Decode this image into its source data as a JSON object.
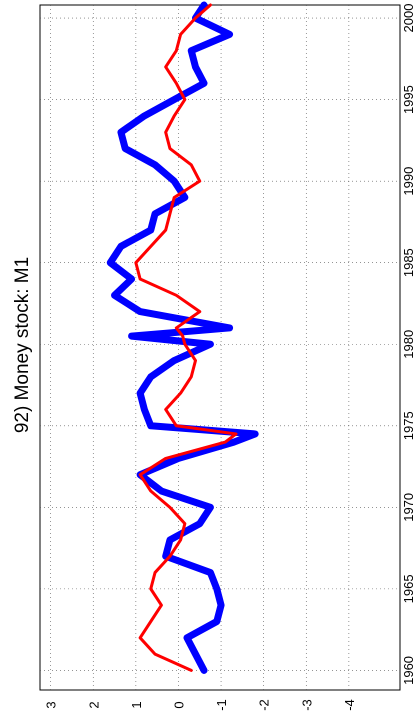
{
  "chart_data": {
    "type": "line",
    "title": "92) Money stock: M1",
    "x": [
      1960,
      1961,
      1962,
      1963,
      1964,
      1965,
      1966,
      1967,
      1968,
      1969,
      1970,
      1971,
      1972,
      1973,
      1974,
      1974.5,
      1975,
      1976,
      1977,
      1978,
      1979,
      1980,
      1980.5,
      1981,
      1982,
      1983,
      1984,
      1985,
      1986,
      1987,
      1988,
      1989,
      1990,
      1991,
      1992,
      1993,
      1994,
      1995,
      1996,
      1997,
      1998,
      1999,
      2000,
      2000.8
    ],
    "series": [
      {
        "color": "#0000ff",
        "values": [
          -0.6,
          -0.4,
          -0.2,
          -0.9,
          -1.0,
          -0.9,
          -0.75,
          0.3,
          0.2,
          -0.5,
          -0.75,
          0.4,
          0.9,
          0,
          -1.3,
          -1.8,
          0.65,
          0.8,
          0.9,
          0.65,
          0.1,
          -0.75,
          1.1,
          -1.2,
          0.9,
          1.5,
          1.1,
          1.6,
          1.35,
          0.65,
          0.55,
          -0.15,
          0.1,
          0.55,
          1.25,
          1.35,
          0.8,
          0.1,
          -0.6,
          -0.4,
          -0.3,
          -1.2,
          -0.4,
          -0.6
        ]
      },
      {
        "color": "#ff0000",
        "values": [
          -0.3,
          0.55,
          0.9,
          0.65,
          0.4,
          0.65,
          0.55,
          0.2,
          -0.05,
          -0.15,
          0.2,
          0.65,
          0.9,
          0.3,
          -1.1,
          -1.35,
          0.05,
          0.3,
          -0.05,
          -0.3,
          -0.4,
          -0.15,
          -0.1,
          0.05,
          -0.5,
          0.05,
          0.9,
          1.0,
          0.65,
          0.3,
          0.2,
          0.1,
          -0.5,
          -0.3,
          0.2,
          0.3,
          0.1,
          -0.15,
          0.05,
          0.3,
          0.05,
          -0.05,
          -0.4,
          -0.75
        ]
      }
    ],
    "xlim": [
      1958.8,
      2000.8
    ],
    "xticks": [
      1960,
      1965,
      1970,
      1975,
      1980,
      1985,
      1990,
      1995,
      2000
    ],
    "ylim": [
      -5.2,
      3.25
    ],
    "yticks": [
      3,
      2,
      1,
      0,
      -1,
      -2,
      -3,
      -4
    ],
    "grid": true
  }
}
